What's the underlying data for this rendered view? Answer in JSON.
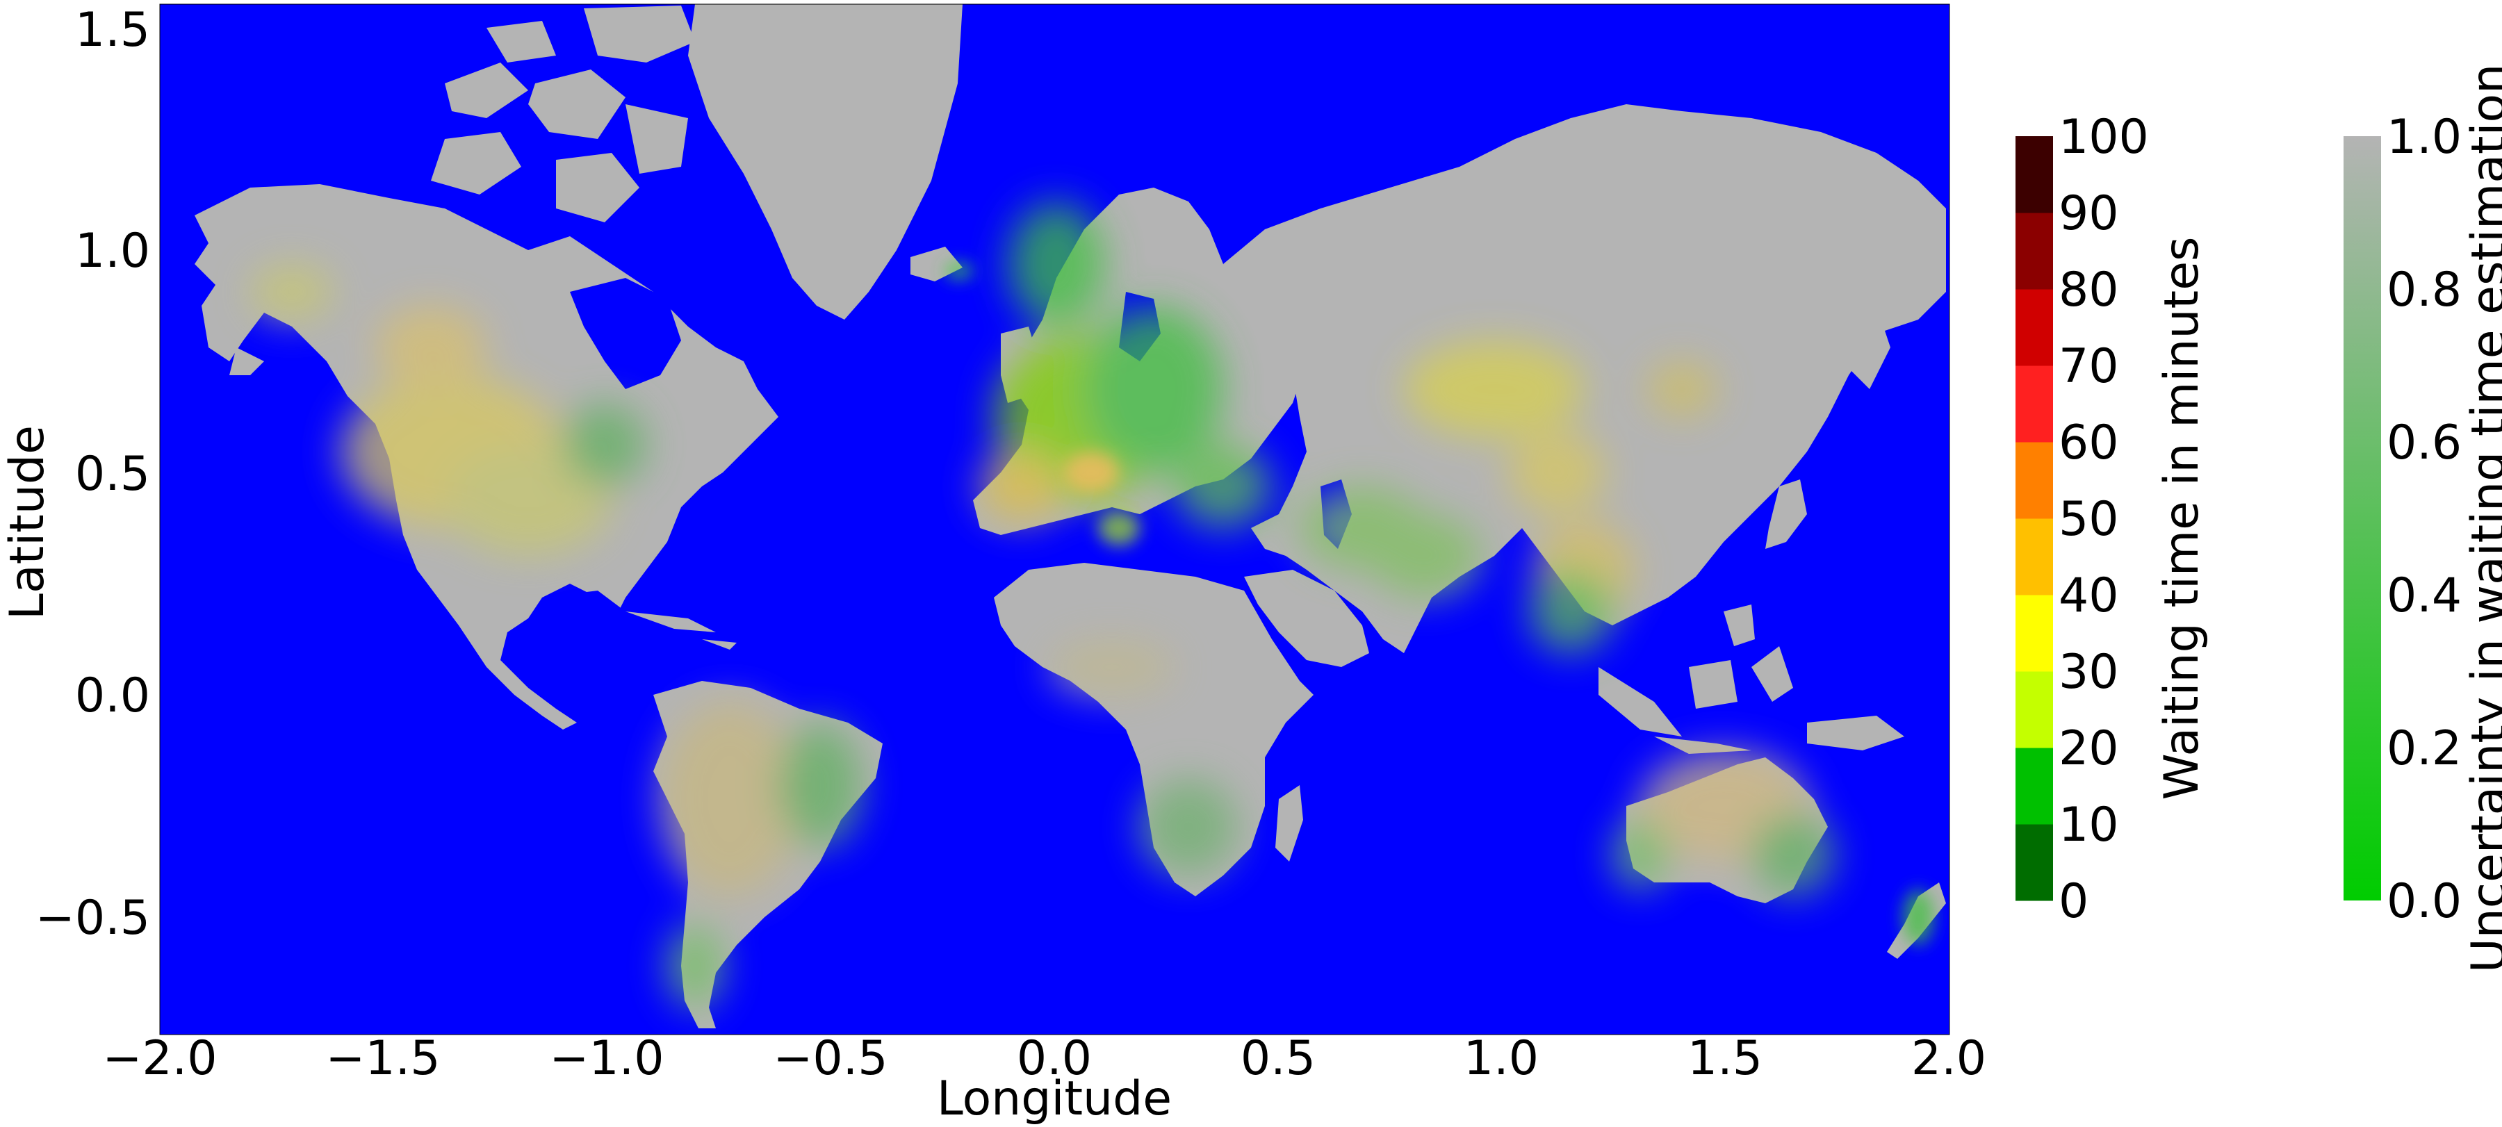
{
  "map": {
    "xlabel": "Longitude",
    "ylabel": "Latitude",
    "xticks": [
      "−2.0",
      "−1.5",
      "−1.0",
      "−0.5",
      "0.0",
      "0.5",
      "1.0",
      "1.5",
      "2.0"
    ],
    "yticks": [
      "1.5",
      "1.0",
      "0.5",
      "0.0",
      "−0.5"
    ],
    "ocean_color": "#0000ff",
    "land_color": "#b4b4b4",
    "regions": {
      "north_america": "Canada and USA",
      "south_america": "South America",
      "europe": "Europe",
      "africa": "Africa",
      "asia": "Asia",
      "australia": "Australia",
      "greenland": "Greenland"
    }
  },
  "colorbar_waiting": {
    "title": "Waiting time in minutes",
    "ticks": [
      "100",
      "90",
      "80",
      "70",
      "60",
      "50",
      "40",
      "30",
      "20",
      "10",
      "0"
    ],
    "colors": [
      "#006d00",
      "#00c000",
      "#c4ff00",
      "#ffff00",
      "#ffc000",
      "#ff8000",
      "#ff2020",
      "#d00000",
      "#8b0000",
      "#3c0000"
    ]
  },
  "colorbar_uncertainty": {
    "title": "Uncertainty in waiting time estimation",
    "ticks": [
      "1.0",
      "0.8",
      "0.6",
      "0.4",
      "0.2",
      "0.0"
    ],
    "color_low": "#00cc00",
    "color_high": "#b4b4b4"
  }
}
